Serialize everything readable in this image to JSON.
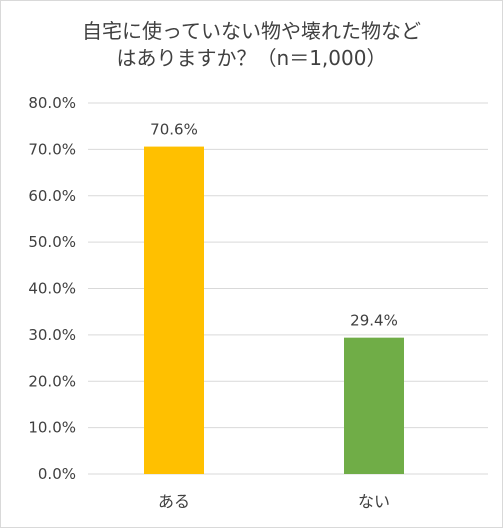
{
  "chart_data": {
    "type": "bar",
    "title_line1": "自宅に使っていない物や壊れた物など",
    "title_line2": "はありますか？（n＝1,000）",
    "categories": [
      "ある",
      "ない"
    ],
    "values": [
      70.6,
      29.4
    ],
    "data_labels": [
      "70.6%",
      "29.4%"
    ],
    "bar_colors": [
      "#FFC000",
      "#70AD47"
    ],
    "ylim": [
      0,
      80
    ],
    "yticks": [
      0,
      10,
      20,
      30,
      40,
      50,
      60,
      70,
      80
    ],
    "ytick_labels": [
      "0.0%",
      "10.0%",
      "20.0%",
      "30.0%",
      "40.0%",
      "50.0%",
      "60.0%",
      "70.0%",
      "80.0%"
    ],
    "grid": true,
    "legend": "none"
  }
}
